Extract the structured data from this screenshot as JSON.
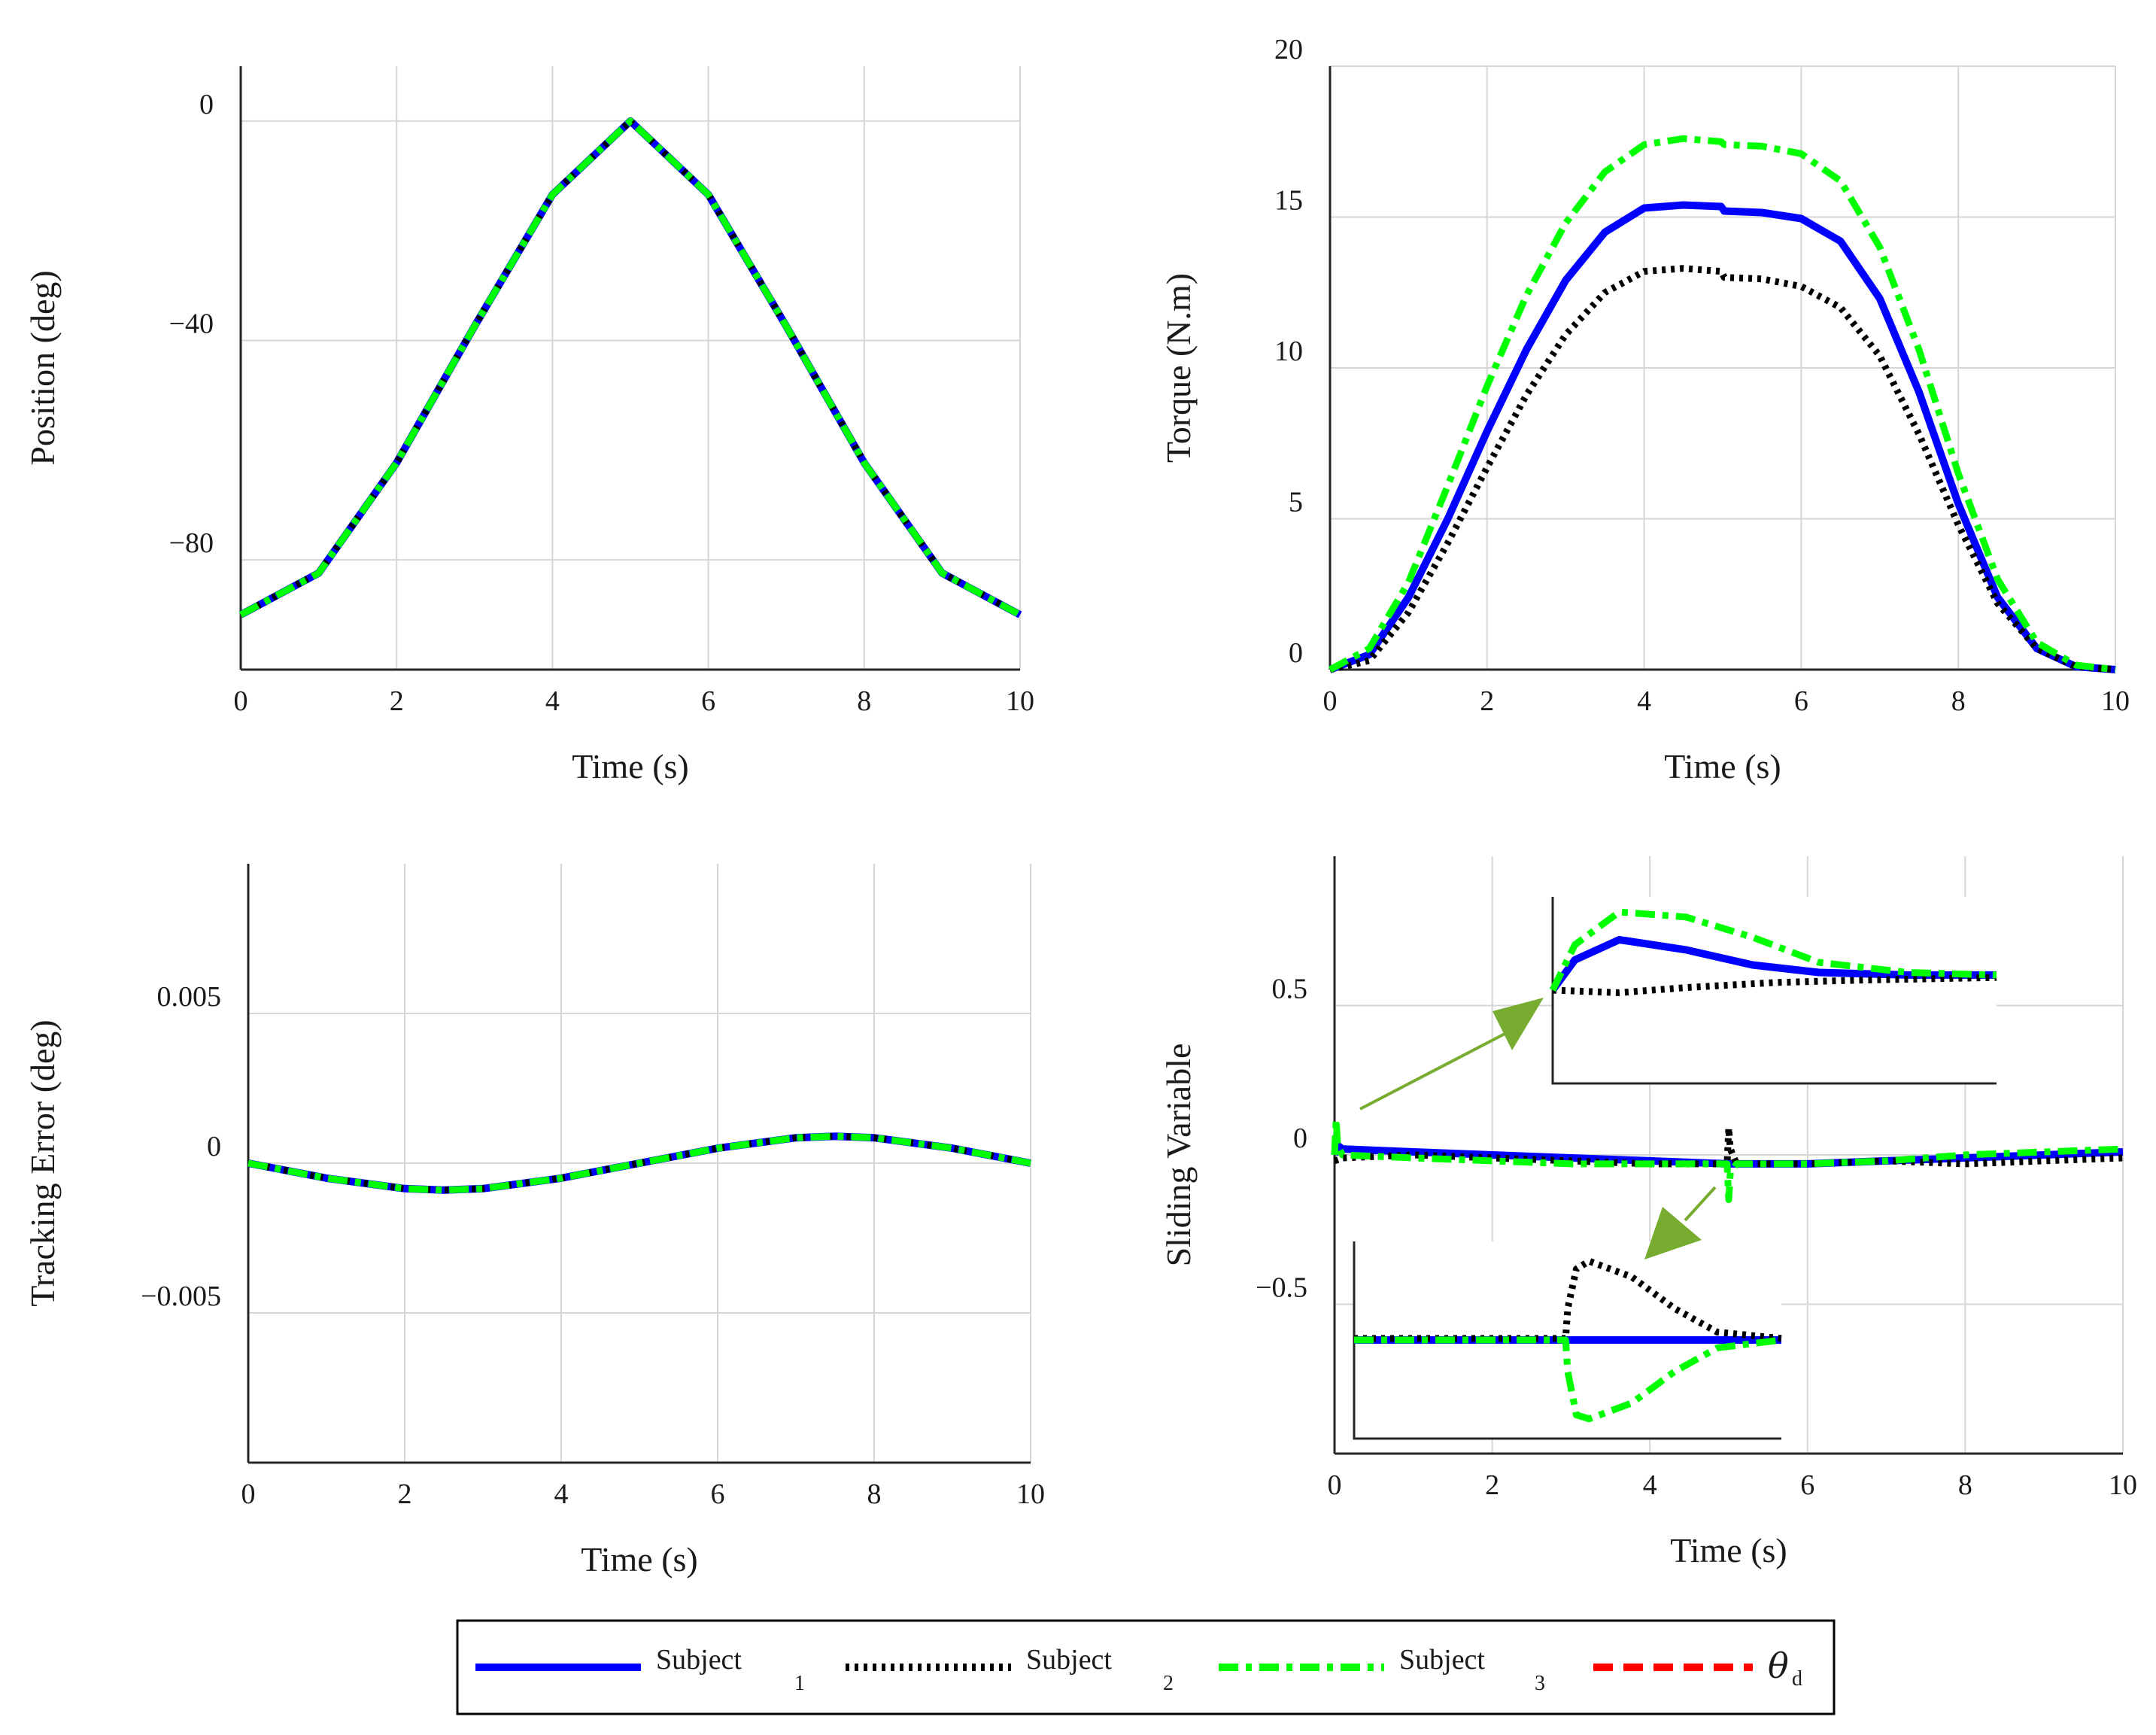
{
  "colors": {
    "subject1": "#0000ff",
    "subject2": "#000000",
    "subject3": "#00ff00",
    "theta_d": "#ff0000",
    "arrow": "#77ac30"
  },
  "chart_data": [
    {
      "id": "position",
      "type": "line",
      "title": "",
      "xlabel": "Time (s)",
      "ylabel": "Position (deg)",
      "xlim": [
        0,
        10
      ],
      "ylim": [
        -100,
        10
      ],
      "xticks": [
        0,
        2,
        4,
        6,
        8,
        10
      ],
      "xtick_labels": [
        "0",
        "2",
        "4",
        "6",
        "8",
        "10"
      ],
      "yticks": [
        -80,
        -40,
        0
      ],
      "ytick_labels": [
        "−80",
        "−40",
        "0"
      ],
      "grid": true,
      "series": [
        {
          "name": "theta_d",
          "style": "dash",
          "x": [
            0,
            1,
            2,
            3,
            4,
            5,
            6,
            7,
            8,
            9,
            10
          ],
          "values": [
            -90,
            -82.4,
            -62.3,
            -37.4,
            -13.4,
            0,
            -13.4,
            -37.4,
            -62.3,
            -82.4,
            -90
          ]
        },
        {
          "name": "Subject 1",
          "style": "solid",
          "x": [
            0,
            1,
            2,
            3,
            4,
            5,
            6,
            7,
            8,
            9,
            10
          ],
          "values": [
            -90,
            -82.4,
            -62.3,
            -37.4,
            -13.4,
            0,
            -13.4,
            -37.4,
            -62.3,
            -82.4,
            -90
          ]
        },
        {
          "name": "Subject 2",
          "style": "dot",
          "x": [
            0,
            1,
            2,
            3,
            4,
            5,
            6,
            7,
            8,
            9,
            10
          ],
          "values": [
            -90,
            -82.4,
            -62.3,
            -37.4,
            -13.4,
            0,
            -13.4,
            -37.4,
            -62.3,
            -82.4,
            -90
          ]
        },
        {
          "name": "Subject 3",
          "style": "dashdot",
          "x": [
            0,
            1,
            2,
            3,
            4,
            5,
            6,
            7,
            8,
            9,
            10
          ],
          "values": [
            -90,
            -82.4,
            -62.3,
            -37.4,
            -13.4,
            0,
            -13.4,
            -37.4,
            -62.3,
            -82.4,
            -90
          ]
        }
      ]
    },
    {
      "id": "torque",
      "type": "line",
      "title": "",
      "xlabel": "Time (s)",
      "ylabel": "Torque (N.m)",
      "xlim": [
        0,
        10
      ],
      "ylim": [
        0,
        20
      ],
      "xticks": [
        0,
        2,
        4,
        6,
        8,
        10
      ],
      "xtick_labels": [
        "0",
        "2",
        "4",
        "6",
        "8",
        "10"
      ],
      "yticks": [
        0,
        5,
        10,
        15,
        20
      ],
      "ytick_labels": [
        "0",
        "5",
        "10",
        "15",
        "20"
      ],
      "grid": true,
      "series": [
        {
          "name": "Subject 1",
          "style": "solid",
          "x": [
            0,
            0.5,
            1,
            1.5,
            2,
            2.5,
            3,
            3.5,
            4,
            4.5,
            4.98,
            5.02,
            5.5,
            6,
            6.5,
            7,
            7.5,
            8,
            8.5,
            9,
            9.5,
            10
          ],
          "values": [
            0,
            0.5,
            2.4,
            5,
            7.9,
            10.6,
            12.9,
            14.5,
            15.3,
            15.4,
            15.35,
            15.2,
            15.15,
            14.95,
            14.2,
            12.3,
            9.2,
            5.5,
            2.4,
            0.7,
            0.1,
            0
          ]
        },
        {
          "name": "Subject 2",
          "style": "dot",
          "x": [
            0,
            0.5,
            1,
            1.5,
            2,
            2.5,
            3,
            3.5,
            4,
            4.5,
            4.98,
            5.02,
            5.5,
            6,
            6.5,
            7,
            7.5,
            8,
            8.5,
            9,
            9.5,
            10
          ],
          "values": [
            0,
            0.3,
            1.9,
            4.2,
            6.7,
            9.1,
            11.1,
            12.5,
            13.2,
            13.3,
            13.2,
            13,
            12.95,
            12.7,
            12,
            10.4,
            7.8,
            4.8,
            2.2,
            0.7,
            0.1,
            0
          ]
        },
        {
          "name": "Subject 3",
          "style": "dashdot",
          "x": [
            0,
            0.5,
            1,
            1.5,
            2,
            2.5,
            3,
            3.5,
            4,
            4.5,
            4.98,
            5.02,
            5.5,
            6,
            6.5,
            7,
            7.5,
            8,
            8.5,
            9,
            9.5,
            10
          ],
          "values": [
            0,
            0.7,
            2.9,
            6.1,
            9.4,
            12.4,
            14.8,
            16.5,
            17.4,
            17.6,
            17.5,
            17.4,
            17.35,
            17.1,
            16.2,
            14,
            10.6,
            6.5,
            3,
            0.9,
            0.15,
            0
          ]
        }
      ]
    },
    {
      "id": "tracking_error",
      "type": "line",
      "title": "",
      "xlabel": "Time (s)",
      "ylabel": "Tracking Error (deg)",
      "xlim": [
        0,
        10
      ],
      "ylim": [
        -0.01,
        0.01
      ],
      "xticks": [
        0,
        2,
        4,
        6,
        8,
        10
      ],
      "xtick_labels": [
        "0",
        "2",
        "4",
        "6",
        "8",
        "10"
      ],
      "yticks": [
        -0.005,
        0,
        0.005
      ],
      "ytick_labels": [
        "−0.005",
        "0",
        "0.005"
      ],
      "grid": true,
      "series": [
        {
          "name": "Subject 1",
          "style": "solid",
          "x": [
            0,
            1,
            2,
            2.5,
            3,
            4,
            5,
            6,
            7,
            7.5,
            8,
            9,
            10
          ],
          "values": [
            0,
            -0.0005,
            -0.00085,
            -0.0009,
            -0.00085,
            -0.0005,
            0,
            0.0005,
            0.00085,
            0.0009,
            0.00085,
            0.0005,
            0
          ]
        },
        {
          "name": "Subject 2",
          "style": "dot",
          "x": [
            0,
            1,
            2,
            2.5,
            3,
            4,
            5,
            6,
            7,
            7.5,
            8,
            9,
            10
          ],
          "values": [
            0,
            -0.0005,
            -0.00085,
            -0.0009,
            -0.00085,
            -0.0005,
            0,
            0.0005,
            0.00085,
            0.0009,
            0.00085,
            0.0005,
            0
          ]
        },
        {
          "name": "Subject 3",
          "style": "dashdot",
          "x": [
            0,
            1,
            2,
            2.5,
            3,
            4,
            5,
            6,
            7,
            7.5,
            8,
            9,
            10
          ],
          "values": [
            0,
            -0.0005,
            -0.00085,
            -0.0009,
            -0.00085,
            -0.0005,
            0,
            0.0005,
            0.00085,
            0.0009,
            0.00085,
            0.0005,
            0
          ]
        }
      ]
    },
    {
      "id": "sliding_variable",
      "type": "line",
      "title": "",
      "xlabel": "Time (s)",
      "ylabel": "Sliding Variable",
      "xlim": [
        0,
        10
      ],
      "ylim": [
        -1,
        1
      ],
      "xticks": [
        0,
        2,
        4,
        6,
        8,
        10
      ],
      "xtick_labels": [
        "0",
        "2",
        "4",
        "6",
        "8",
        "10"
      ],
      "yticks": [
        -0.5,
        0,
        0.5
      ],
      "ytick_labels": [
        "−0.5",
        "0",
        "0.5"
      ],
      "grid": true,
      "series": [
        {
          "name": "Subject 1",
          "style": "solid",
          "x": [
            0,
            0.02,
            0.05,
            0.1,
            1,
            2,
            3,
            4,
            5,
            6,
            7,
            8,
            9,
            10
          ],
          "values": [
            0,
            0.02,
            0.03,
            0.02,
            0.01,
            0.0,
            -0.01,
            -0.02,
            -0.03,
            -0.03,
            -0.02,
            -0.01,
            0.0,
            0.01
          ]
        },
        {
          "name": "Subject 2",
          "style": "dot",
          "x": [
            0,
            0.1,
            1,
            2,
            3,
            4,
            4.98,
            5.0,
            5.02,
            5.1,
            6,
            7,
            8,
            9,
            10
          ],
          "values": [
            -0.02,
            -0.01,
            0.0,
            -0.01,
            -0.02,
            -0.03,
            -0.03,
            0.09,
            0.02,
            -0.03,
            -0.03,
            -0.02,
            -0.03,
            -0.02,
            -0.01
          ]
        },
        {
          "name": "Subject 3",
          "style": "dashdot",
          "x": [
            0,
            0.02,
            0.04,
            0.1,
            1,
            2,
            3,
            4,
            4.98,
            5.0,
            5.02,
            5.1,
            6,
            7,
            8,
            9,
            10
          ],
          "values": [
            0,
            0.12,
            0.03,
            0.0,
            -0.01,
            -0.02,
            -0.03,
            -0.03,
            -0.03,
            -0.15,
            -0.06,
            -0.03,
            -0.03,
            -0.02,
            0.0,
            0.01,
            0.02
          ]
        }
      ],
      "insets": [
        {
          "name": "zoom-near-t0",
          "series": [
            {
              "name": "Subject 1",
              "style": "solid",
              "x": [
                0,
                0.1,
                0.3,
                0.6,
                0.9,
                1.2,
                1.6,
                2.0
              ],
              "values": [
                0,
                0.6,
                1.0,
                0.8,
                0.5,
                0.35,
                0.3,
                0.3
              ]
            },
            {
              "name": "Subject 2",
              "style": "dot",
              "x": [
                0,
                0.3,
                0.6,
                1.0,
                1.4,
                2.0
              ],
              "values": [
                0,
                -0.05,
                0.05,
                0.15,
                0.2,
                0.25
              ]
            },
            {
              "name": "Subject 3",
              "style": "dashdot",
              "x": [
                0,
                0.1,
                0.3,
                0.6,
                0.9,
                1.2,
                1.6,
                2.0
              ],
              "values": [
                0,
                0.9,
                1.55,
                1.45,
                1.05,
                0.55,
                0.35,
                0.3
              ]
            }
          ]
        },
        {
          "name": "zoom-near-t5",
          "series": [
            {
              "name": "Subject 1",
              "style": "solid",
              "x": [
                0,
                2.0
              ],
              "values": [
                0,
                0
              ]
            },
            {
              "name": "Subject 2",
              "style": "dot",
              "x": [
                0,
                0.99,
                1.0,
                1.04,
                1.1,
                1.3,
                1.5,
                1.7,
                2.0
              ],
              "values": [
                0.02,
                0.02,
                0.4,
                0.9,
                1.0,
                0.8,
                0.4,
                0.1,
                0.02
              ]
            },
            {
              "name": "Subject 3",
              "style": "dashdot",
              "x": [
                0,
                0.99,
                1.0,
                1.04,
                1.1,
                1.3,
                1.5,
                1.7,
                2.0
              ],
              "values": [
                0,
                0,
                -0.4,
                -0.95,
                -1.0,
                -0.8,
                -0.4,
                -0.1,
                0
              ]
            }
          ]
        }
      ]
    }
  ],
  "legend": {
    "items": [
      {
        "label": "Subject",
        "sub": "1"
      },
      {
        "label": "Subject",
        "sub": "2"
      },
      {
        "label": "Subject",
        "sub": "3"
      },
      {
        "label": "θ",
        "sub": "d"
      }
    ]
  }
}
